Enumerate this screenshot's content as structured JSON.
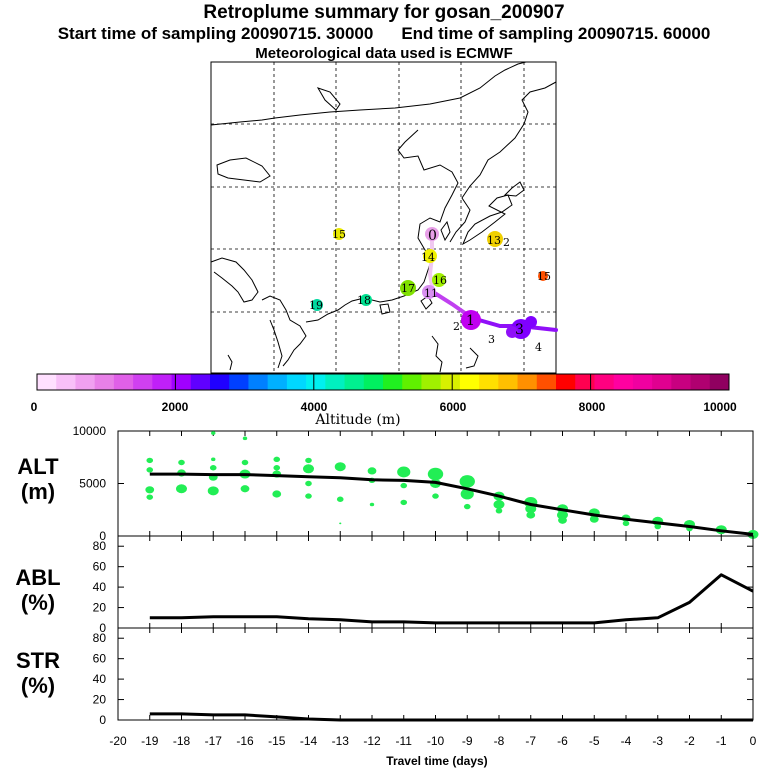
{
  "header": {
    "title": "Retroplume summary for gosan_200907",
    "start_label": "Start time of sampling 20090715. 30000",
    "end_label": "End time of sampling 20090715. 60000",
    "met_label": "Meteorological data used is ECMWF"
  },
  "colorbar": {
    "label": "Altitude (m)",
    "ticks": [
      "0",
      "2000",
      "4000",
      "6000",
      "8000",
      "10000"
    ],
    "colors": [
      "#ffe0ff",
      "#f8c0f8",
      "#f0a0f0",
      "#e880e8",
      "#e060e8",
      "#d040f0",
      "#c020f8",
      "#a000ff",
      "#6000ff",
      "#2000ff",
      "#0040ff",
      "#0080ff",
      "#00b0ff",
      "#00d8ff",
      "#00f0f0",
      "#00f0c0",
      "#00f090",
      "#00f060",
      "#20f020",
      "#60f000",
      "#a0f000",
      "#d8f000",
      "#ffff00",
      "#ffe000",
      "#ffc000",
      "#ff9000",
      "#ff5000",
      "#ff0000",
      "#ff0050",
      "#ff0080",
      "#ff00a0",
      "#f000a0",
      "#e00090",
      "#c80080",
      "#b00070",
      "#900060"
    ]
  },
  "map": {
    "points": [
      {
        "label": "0",
        "color": "#e8a0e8"
      },
      {
        "label": "1",
        "color": "#e0c0e0"
      },
      {
        "label": "2",
        "color": "#c000f0"
      },
      {
        "label": "3",
        "color": "#8000ff"
      },
      {
        "label": "4",
        "color": "#8000ff"
      },
      {
        "label": "11",
        "color": "#d890f0"
      },
      {
        "label": "13",
        "color": "#f0d000"
      },
      {
        "label": "14",
        "color": "#f0f000"
      },
      {
        "label": "15",
        "color": "#e8e800"
      },
      {
        "label": "15",
        "color": "#ff5000"
      },
      {
        "label": "16",
        "color": "#a0f000"
      },
      {
        "label": "17",
        "color": "#80e000"
      },
      {
        "label": "18",
        "color": "#00e090"
      },
      {
        "label": "19",
        "color": "#00d8a0"
      },
      {
        "label": "2",
        "color": "#b000f0"
      },
      {
        "label": "3",
        "color": "#9010f8"
      }
    ]
  },
  "chart_data": [
    {
      "type": "scatter+line",
      "title": "ALT (m)",
      "ylabel_line1": "ALT",
      "ylabel_line2": "(m)",
      "ylim": [
        0,
        10000
      ],
      "yticks": [
        "0",
        "5000",
        "10000"
      ],
      "xlim": [
        -20,
        0
      ],
      "line": {
        "x": [
          -19,
          -18,
          -17,
          -16,
          -15,
          -14,
          -13,
          -12,
          -11,
          -10,
          -9,
          -8,
          -7,
          -6,
          -5,
          -4,
          -3,
          -2,
          -1,
          0
        ],
        "y": [
          5900,
          5900,
          5850,
          5850,
          5750,
          5650,
          5550,
          5350,
          5300,
          5100,
          4500,
          3800,
          3000,
          2500,
          2000,
          1600,
          1250,
          900,
          500,
          150
        ]
      },
      "scatter": [
        {
          "x": -19,
          "y": 7200,
          "s": 3
        },
        {
          "x": -19,
          "y": 6300,
          "s": 3
        },
        {
          "x": -19,
          "y": 4400,
          "s": 4
        },
        {
          "x": -19,
          "y": 3700,
          "s": 3
        },
        {
          "x": -18,
          "y": 7000,
          "s": 3
        },
        {
          "x": -18,
          "y": 6000,
          "s": 4
        },
        {
          "x": -18,
          "y": 4500,
          "s": 5
        },
        {
          "x": -17,
          "y": 9800,
          "s": 2
        },
        {
          "x": -17,
          "y": 7300,
          "s": 2
        },
        {
          "x": -17,
          "y": 6500,
          "s": 3
        },
        {
          "x": -17,
          "y": 5600,
          "s": 4
        },
        {
          "x": -17,
          "y": 4300,
          "s": 5
        },
        {
          "x": -16,
          "y": 9300,
          "s": 2
        },
        {
          "x": -16,
          "y": 7000,
          "s": 3
        },
        {
          "x": -16,
          "y": 5900,
          "s": 5
        },
        {
          "x": -16,
          "y": 4500,
          "s": 4
        },
        {
          "x": -15,
          "y": 7300,
          "s": 3
        },
        {
          "x": -15,
          "y": 6500,
          "s": 3
        },
        {
          "x": -15,
          "y": 5900,
          "s": 4
        },
        {
          "x": -15,
          "y": 4000,
          "s": 4
        },
        {
          "x": -14,
          "y": 7200,
          "s": 3
        },
        {
          "x": -14,
          "y": 6400,
          "s": 5
        },
        {
          "x": -14,
          "y": 5000,
          "s": 3
        },
        {
          "x": -14,
          "y": 3800,
          "s": 3
        },
        {
          "x": -13,
          "y": 6600,
          "s": 5
        },
        {
          "x": -13,
          "y": 3500,
          "s": 3
        },
        {
          "x": -13,
          "y": 1200,
          "s": 1
        },
        {
          "x": -12,
          "y": 6200,
          "s": 4
        },
        {
          "x": -12,
          "y": 5300,
          "s": 3
        },
        {
          "x": -12,
          "y": 3000,
          "s": 2
        },
        {
          "x": -11,
          "y": 6100,
          "s": 6
        },
        {
          "x": -11,
          "y": 4800,
          "s": 3
        },
        {
          "x": -11,
          "y": 3200,
          "s": 3
        },
        {
          "x": -10,
          "y": 5900,
          "s": 7
        },
        {
          "x": -10,
          "y": 5000,
          "s": 5
        },
        {
          "x": -10,
          "y": 3800,
          "s": 3
        },
        {
          "x": -9,
          "y": 5200,
          "s": 7
        },
        {
          "x": -9,
          "y": 4000,
          "s": 6
        },
        {
          "x": -9,
          "y": 2800,
          "s": 3
        },
        {
          "x": -8,
          "y": 3800,
          "s": 5
        },
        {
          "x": -8,
          "y": 3000,
          "s": 5
        },
        {
          "x": -8,
          "y": 2400,
          "s": 3
        },
        {
          "x": -7,
          "y": 3200,
          "s": 6
        },
        {
          "x": -7,
          "y": 2600,
          "s": 5
        },
        {
          "x": -7,
          "y": 2000,
          "s": 4
        },
        {
          "x": -6,
          "y": 2600,
          "s": 5
        },
        {
          "x": -6,
          "y": 2000,
          "s": 5
        },
        {
          "x": -6,
          "y": 1500,
          "s": 4
        },
        {
          "x": -5,
          "y": 2200,
          "s": 5
        },
        {
          "x": -5,
          "y": 1600,
          "s": 4
        },
        {
          "x": -4,
          "y": 1700,
          "s": 4
        },
        {
          "x": -4,
          "y": 1200,
          "s": 3
        },
        {
          "x": -3,
          "y": 1400,
          "s": 5
        },
        {
          "x": -3,
          "y": 900,
          "s": 3
        },
        {
          "x": -2,
          "y": 1100,
          "s": 5
        },
        {
          "x": -2,
          "y": 700,
          "s": 3
        },
        {
          "x": -1,
          "y": 600,
          "s": 5
        },
        {
          "x": 0,
          "y": 150,
          "s": 5
        }
      ]
    },
    {
      "type": "line",
      "title": "ABL (%)",
      "ylabel_line1": "ABL",
      "ylabel_line2": "(%)",
      "ylim": [
        0,
        90
      ],
      "yticks": [
        "0",
        "20",
        "40",
        "60",
        "80"
      ],
      "xlim": [
        -20,
        0
      ],
      "x": [
        -19,
        -18,
        -17,
        -16,
        -15,
        -14,
        -13,
        -12,
        -11,
        -10,
        -9,
        -8,
        -7,
        -6,
        -5,
        -4,
        -3,
        -2,
        -1,
        0
      ],
      "y": [
        10,
        10,
        11,
        11,
        11,
        9,
        8,
        6,
        6,
        5,
        5,
        5,
        5,
        5,
        5,
        8,
        10,
        25,
        52,
        36
      ]
    },
    {
      "type": "line",
      "title": "STR (%)",
      "ylabel_line1": "STR",
      "ylabel_line2": "(%)",
      "ylim": [
        0,
        90
      ],
      "yticks": [
        "0",
        "20",
        "40",
        "60",
        "80"
      ],
      "xlim": [
        -20,
        0
      ],
      "xlabel": "Travel time (days)",
      "xticks": [
        "-20",
        "-19",
        "-18",
        "-17",
        "-16",
        "-15",
        "-14",
        "-13",
        "-12",
        "-11",
        "-10",
        "-9",
        "-8",
        "-7",
        "-6",
        "-5",
        "-4",
        "-3",
        "-2",
        "-1",
        "0"
      ],
      "x": [
        -19,
        -18,
        -17,
        -16,
        -15,
        -14,
        -13,
        -12,
        -11,
        -10,
        -9,
        -8,
        -7,
        -6,
        -5,
        -4,
        -3,
        -2,
        -1,
        0
      ],
      "y": [
        6,
        6,
        5,
        5,
        3,
        1,
        0,
        0,
        0,
        0,
        0,
        0,
        0,
        0,
        0,
        0,
        0,
        0,
        0,
        0
      ]
    }
  ]
}
